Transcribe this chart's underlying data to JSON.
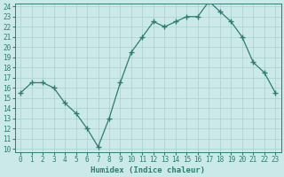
{
  "xlabel": "Humidex (Indice chaleur)",
  "x": [
    0,
    1,
    2,
    3,
    4,
    5,
    6,
    7,
    8,
    9,
    10,
    11,
    12,
    13,
    14,
    15,
    16,
    17,
    18,
    19,
    20,
    21,
    22,
    23
  ],
  "y": [
    15.5,
    16.5,
    16.5,
    16.0,
    14.5,
    13.5,
    12.0,
    10.2,
    13.0,
    16.5,
    19.5,
    21.0,
    22.5,
    22.0,
    22.5,
    23.0,
    23.0,
    24.5,
    23.5,
    22.5,
    21.0,
    18.5,
    17.5,
    15.5
  ],
  "line_color": "#2d7d70",
  "marker": "+",
  "marker_size": 4,
  "marker_lw": 1.0,
  "line_width": 0.9,
  "bg_color": "#cce9e9",
  "grid_color": "#aacfcf",
  "ylim_min": 10,
  "ylim_max": 24,
  "xlim_min": -0.5,
  "xlim_max": 23.5,
  "yticks": [
    10,
    11,
    12,
    13,
    14,
    15,
    16,
    17,
    18,
    19,
    20,
    21,
    22,
    23,
    24
  ],
  "xticks": [
    0,
    1,
    2,
    3,
    4,
    5,
    6,
    7,
    8,
    9,
    10,
    11,
    12,
    13,
    14,
    15,
    16,
    17,
    18,
    19,
    20,
    21,
    22,
    23
  ],
  "tick_color": "#2d7d70",
  "xlabel_fontsize": 6.5,
  "tick_fontsize": 5.5
}
